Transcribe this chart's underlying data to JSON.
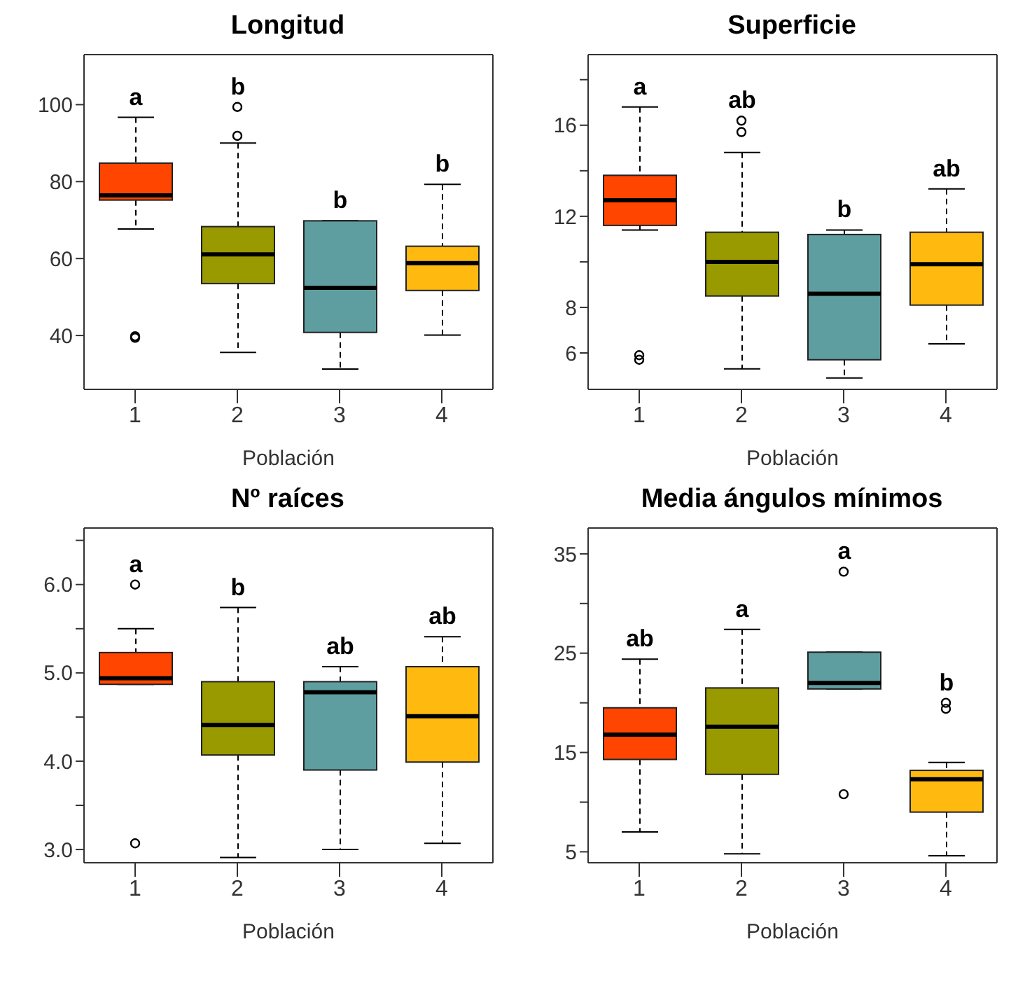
{
  "chart_data": [
    {
      "type": "box",
      "title": "Longitud",
      "xlabel": "Población",
      "categories": [
        "1",
        "2",
        "3",
        "4"
      ],
      "colors": [
        "#ff4500",
        "#999900",
        "#5f9ea0",
        "#ffb90f"
      ],
      "boxes": [
        {
          "low": 67.7,
          "q1": 75.2,
          "median": 76.4,
          "q3": 84.8,
          "high": 96.7,
          "outliers": [
            39.4,
            39.8
          ]
        },
        {
          "low": 35.6,
          "q1": 53.5,
          "median": 61.1,
          "q3": 68.3,
          "high": 90,
          "outliers": [
            99.4,
            91.9
          ]
        },
        {
          "low": 31.3,
          "q1": 40.8,
          "median": 52.4,
          "q3": 69.8,
          "high": 69.8
        },
        {
          "low": 40.1,
          "q1": 51.7,
          "median": 58.8,
          "q3": 63.2,
          "high": 79.3
        }
      ],
      "ylim": [
        26,
        113
      ],
      "yticks": [
        40,
        60,
        80,
        100
      ],
      "annotations": [
        "a",
        "b",
        "b",
        "b"
      ]
    },
    {
      "type": "box",
      "title": "Superficie",
      "xlabel": "Población",
      "categories": [
        "1",
        "2",
        "3",
        "4"
      ],
      "colors": [
        "#ff4500",
        "#999900",
        "#5f9ea0",
        "#ffb90f"
      ],
      "boxes": [
        {
          "low": 11.4,
          "q1": 11.6,
          "median": 12.7,
          "q3": 13.8,
          "high": 16.8,
          "outliers": [
            5.9,
            5.7
          ]
        },
        {
          "low": 5.3,
          "q1": 8.5,
          "median": 10,
          "q3": 11.3,
          "high": 14.8,
          "outliers": [
            16.2,
            15.7
          ]
        },
        {
          "low": 4.9,
          "q1": 5.7,
          "median": 8.6,
          "q3": 11.2,
          "high": 11.4
        },
        {
          "low": 6.4,
          "q1": 8.1,
          "median": 9.9,
          "q3": 11.3,
          "high": 13.2
        }
      ],
      "ylim": [
        4.4,
        19.1
      ],
      "yticks": [
        6,
        8,
        {
          "value": 10,
          "label": null
        },
        12,
        {
          "value": 14,
          "label": null
        },
        16,
        {
          "value": 18,
          "label": null
        }
      ],
      "annotations": [
        "a",
        "ab",
        "b",
        "ab"
      ]
    },
    {
      "type": "box",
      "title": "Nº raíces",
      "xlabel": "Población",
      "categories": [
        "1",
        "2",
        "3",
        "4"
      ],
      "colors": [
        "#ff4500",
        "#999900",
        "#5f9ea0",
        "#ffb90f"
      ],
      "boxes": [
        {
          "low": 4.87,
          "q1": 4.87,
          "median": 4.94,
          "q3": 5.23,
          "high": 5.5,
          "outliers": [
            6.0,
            3.07
          ]
        },
        {
          "low": 2.91,
          "q1": 4.07,
          "median": 4.41,
          "q3": 4.9,
          "high": 5.74
        },
        {
          "low": 3.0,
          "q1": 3.9,
          "median": 4.78,
          "q3": 4.9,
          "high": 5.07
        },
        {
          "low": 3.07,
          "q1": 3.99,
          "median": 4.51,
          "q3": 5.07,
          "high": 5.41
        }
      ],
      "ylim": [
        2.85,
        6.64
      ],
      "yticks": [
        {
          "value": 3,
          "label": "3.0"
        },
        {
          "value": 3.5,
          "label": null
        },
        {
          "value": 4,
          "label": "4.0"
        },
        {
          "value": 4.5,
          "label": null
        },
        {
          "value": 5,
          "label": "5.0"
        },
        {
          "value": 5.5,
          "label": null
        },
        {
          "value": 6,
          "label": "6.0"
        },
        {
          "value": 6.5,
          "label": null
        }
      ],
      "annotations": [
        "a",
        "b",
        "ab",
        "ab"
      ]
    },
    {
      "type": "box",
      "title": "Media ángulos mínimos",
      "xlabel": "Población",
      "categories": [
        "1",
        "2",
        "3",
        "4"
      ],
      "colors": [
        "#ff4500",
        "#999900",
        "#5f9ea0",
        "#ffb90f"
      ],
      "boxes": [
        {
          "low": 7,
          "q1": 14.3,
          "median": 16.8,
          "q3": 19.5,
          "high": 24.4
        },
        {
          "low": 4.8,
          "q1": 12.8,
          "median": 17.6,
          "q3": 21.5,
          "high": 27.4
        },
        {
          "low": 21.4,
          "q1": 21.4,
          "median": 22,
          "q3": 25.1,
          "high": 25.1,
          "outliers": [
            33.2,
            10.8
          ]
        },
        {
          "low": 4.6,
          "q1": 9,
          "median": 12.3,
          "q3": 13.2,
          "high": 14,
          "outliers": [
            20,
            19.4
          ]
        }
      ],
      "ylim": [
        3.9,
        37.6
      ],
      "yticks": [
        5,
        {
          "value": 10,
          "label": null
        },
        15,
        {
          "value": 20,
          "label": null
        },
        25,
        {
          "value": 30,
          "label": null
        },
        35
      ],
      "annotations": [
        "ab",
        "a",
        "a",
        "b"
      ]
    }
  ]
}
